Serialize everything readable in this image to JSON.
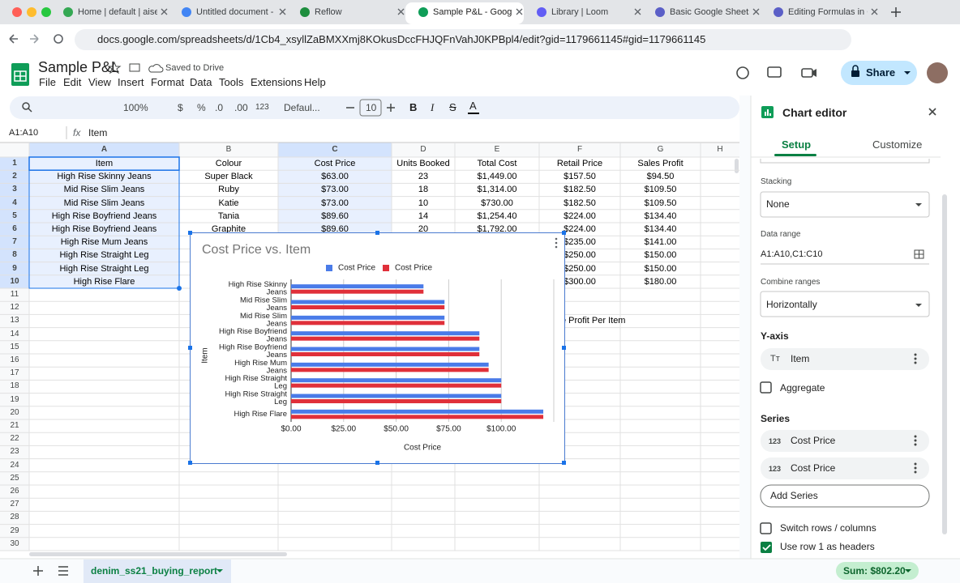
{
  "browser": {
    "tabs": [
      "Home | default | aiser",
      "Untitled document -",
      "Reflow",
      "Sample P&L - Googl",
      "Library | Loom",
      "Basic Google Sheets",
      "Editing Formulas in G"
    ],
    "active_tab": 3,
    "url": "docs.google.com/spreadsheets/d/1Cb4_xsyllZaBMXXmj8KOkusDccFHJQFnVahJ0KPBpl4/edit?gid=1179661145#gid=1179661145"
  },
  "header": {
    "doc_title": "Sample P&L",
    "save_status": "Saved to Drive",
    "menu": [
      "File",
      "Edit",
      "View",
      "Insert",
      "Format",
      "Data",
      "Tools",
      "Extensions",
      "Help"
    ],
    "share": "Share"
  },
  "toolbar": {
    "zoom": "100%",
    "currency": "$",
    "percent": "%",
    "decrease_decimal": ".0",
    "increase_decimal": ".00",
    "number_format": "123",
    "font": "Defaul...",
    "font_size": "10",
    "bold": "B",
    "italic": "I",
    "strikethrough": "S",
    "text_color": "A"
  },
  "formula_bar": {
    "name_box": "A1:A10",
    "fx": "fx",
    "content": "Item"
  },
  "sheet": {
    "columns": [
      "A",
      "B",
      "C",
      "D",
      "E",
      "F",
      "G",
      "H"
    ],
    "row_numbers": [
      1,
      2,
      3,
      4,
      5,
      6,
      7,
      8,
      9,
      10,
      11,
      12,
      13,
      14,
      15,
      16,
      17,
      18,
      19,
      20,
      21,
      22,
      23,
      24,
      25,
      26,
      27,
      28,
      29,
      30
    ],
    "rows": [
      [
        "Item",
        "Colour",
        "Cost Price",
        "Units Booked",
        "Total Cost",
        "Retail Price",
        "Sales Profit"
      ],
      [
        "High Rise Skinny Jeans",
        "Super Black",
        "$63.00",
        23,
        "$1,449.00",
        "$157.50",
        "$94.50"
      ],
      [
        "Mid Rise Slim Jeans",
        "Ruby",
        "$73.00",
        18,
        "$1,314.00",
        "$182.50",
        "$109.50"
      ],
      [
        "Mid Rise Slim Jeans",
        "Katie",
        "$73.00",
        10,
        "$730.00",
        "$182.50",
        "$109.50"
      ],
      [
        "High Rise Boyfriend Jeans",
        "Tania",
        "$89.60",
        14,
        "$1,254.40",
        "$224.00",
        "$134.40"
      ],
      [
        "High Rise Boyfriend Jeans",
        "Graphite",
        "$89.60",
        20,
        "$1,792.00",
        "$224.00",
        "$134.40"
      ],
      [
        "High Rise Mum Jeans",
        null,
        null,
        null,
        null,
        "$235.00",
        "$141.00"
      ],
      [
        "High Rise Straight Leg",
        null,
        null,
        null,
        null,
        "$250.00",
        "$150.00"
      ],
      [
        "High Rise Straight Leg",
        null,
        null,
        null,
        null,
        "$250.00",
        "$150.00"
      ],
      [
        "High Rise Flare",
        null,
        null,
        null,
        null,
        "$300.00",
        "$180.00"
      ]
    ],
    "partial_cell": "e Profit Per Item"
  },
  "chart_data": {
    "type": "bar",
    "orientation": "horizontal",
    "title": "Cost Price vs. Item",
    "x_label": "Cost Price",
    "y_label": "Item",
    "categories": [
      "High Rise Skinny Jeans",
      "Mid Rise Slim Jeans",
      "Mid Rise Slim Jeans",
      "High Rise Boyfriend Jeans",
      "High Rise Boyfriend Jeans",
      "High Rise Mum Jeans",
      "High Rise Straight Leg",
      "High Rise Straight Leg",
      "High Rise Flare"
    ],
    "series": [
      {
        "name": "Cost Price",
        "color": "#4a7be8",
        "values": [
          63,
          73,
          73,
          89.6,
          89.6,
          94,
          100,
          100,
          120
        ]
      },
      {
        "name": "Cost Price",
        "color": "#e0303a",
        "values": [
          63,
          73,
          73,
          89.6,
          89.6,
          94,
          100,
          100,
          120
        ]
      }
    ],
    "xlim": [
      0,
      125
    ],
    "xticks": [
      {
        "value": 0,
        "label": "$0.00"
      },
      {
        "value": 25,
        "label": "$25.00"
      },
      {
        "value": 50,
        "label": "$50.00"
      },
      {
        "value": 75,
        "label": "$75.00"
      },
      {
        "value": 100,
        "label": "$100.00"
      }
    ],
    "grid": true,
    "legend": "top"
  },
  "chart_editor": {
    "title": "Chart editor",
    "tabs": [
      "Setup",
      "Customize"
    ],
    "stacking_label": "Stacking",
    "stacking": "None",
    "data_range_label": "Data range",
    "data_range": "A1:A10,C1:C10",
    "combine_label": "Combine ranges",
    "combine": "Horizontally",
    "y_axis_label": "Y-axis",
    "y_axis_icon": "Tт",
    "y_axis": "Item",
    "aggregate": "Aggregate",
    "series_label": "Series",
    "series_icon": "123",
    "series": [
      "Cost Price",
      "Cost Price"
    ],
    "add_series": "Add Series",
    "switch_rows": "Switch rows / columns",
    "use_headers": "Use row 1 as headers"
  },
  "footer": {
    "sheet_tab": "denim_ss21_buying_report",
    "sum": "Sum: $802.20"
  }
}
